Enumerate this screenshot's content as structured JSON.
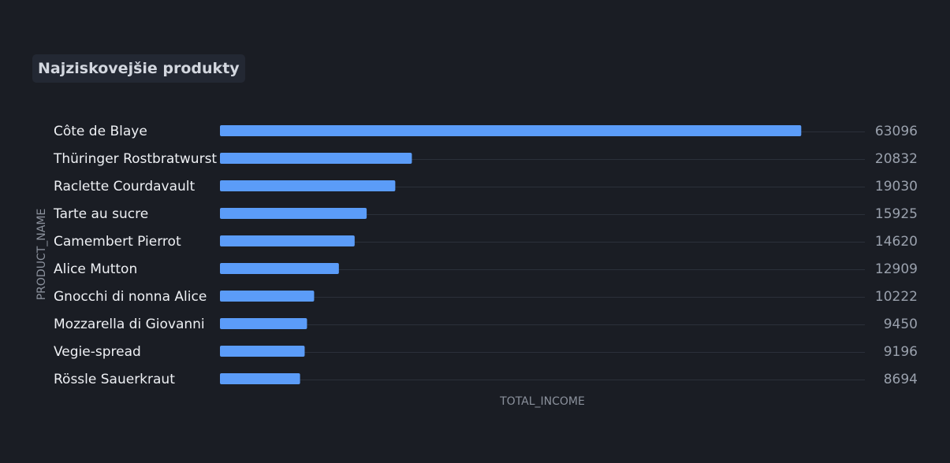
{
  "chart_data": {
    "type": "bar",
    "orientation": "horizontal",
    "title": "Najziskovejšie produkty",
    "xlabel": "TOTAL_INCOME",
    "ylabel": "PRODUCT_NAME",
    "categories": [
      "Côte de Blaye",
      "Thüringer Rostbratwurst",
      "Raclette Courdavault",
      "Tarte au sucre",
      "Camembert Pierrot",
      "Alice Mutton",
      "Gnocchi di nonna Alice",
      "Mozzarella di Giovanni",
      "Vegie-spread",
      "Rössle Sauerkraut"
    ],
    "values": [
      63096,
      20832,
      19030,
      15925,
      14620,
      12909,
      10222,
      9450,
      9196,
      8694
    ],
    "value_labels": [
      "63096",
      "20832",
      "19030",
      "15925",
      "14620",
      "12909",
      "10222",
      "9450",
      "9196",
      "8694"
    ],
    "xlim": [
      0,
      70000
    ],
    "grid": true,
    "legend": "none"
  },
  "colors": {
    "background": "#1a1d24",
    "bar": "#5b9cf8",
    "gridline": "#2b303a",
    "category_text": "#eef0f4",
    "value_text": "#9aa1ad",
    "axis_text": "#8b919c",
    "title_chip": "#232833",
    "title_text": "#d3d7df"
  }
}
